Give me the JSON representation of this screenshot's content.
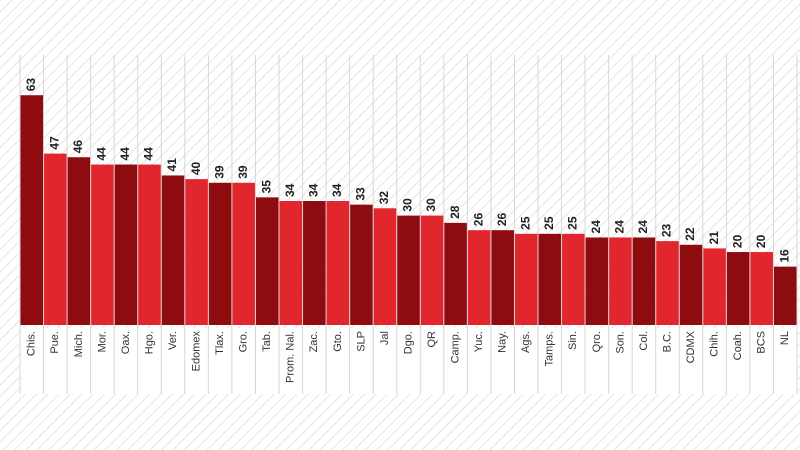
{
  "chart_data": {
    "type": "bar",
    "categories": [
      "Chis.",
      "Pue.",
      "Mich.",
      "Mor.",
      "Oax.",
      "Hgo.",
      "Ver.",
      "Edomex",
      "Tlax.",
      "Gro.",
      "Tab.",
      "Prom. Nal.",
      "Zac.",
      "Gto.",
      "SLP",
      "Jal",
      "Dgo.",
      "QR",
      "Camp.",
      "Yuc.",
      "Nay.",
      "Ags.",
      "Tamps.",
      "Sin.",
      "Qro.",
      "Son.",
      "Col.",
      "B.C.",
      "CDMX",
      "Chih.",
      "Coah.",
      "BCS",
      "NL"
    ],
    "values": [
      63,
      47,
      46,
      44,
      44,
      44,
      41,
      40,
      39,
      39,
      35,
      34,
      34,
      34,
      33,
      32,
      30,
      30,
      28,
      26,
      26,
      25,
      25,
      25,
      24,
      24,
      24,
      23,
      22,
      21,
      20,
      20,
      16
    ],
    "colors": [
      "#8e0b10",
      "#e2262d"
    ],
    "ylim": [
      0,
      68
    ]
  }
}
